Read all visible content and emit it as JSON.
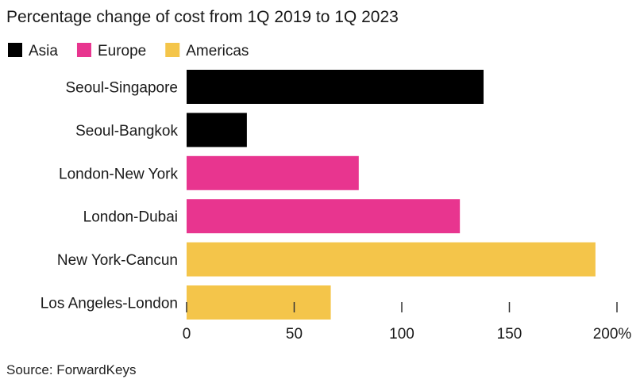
{
  "chart_data": {
    "type": "bar",
    "orientation": "horizontal",
    "title": "Percentage change of cost from 1Q 2019 to 1Q 2023",
    "categories": [
      "Seoul-Singapore",
      "Seoul-Bangkok",
      "London-New York",
      "London-Dubai",
      "New York-Cancun",
      "Los Angeles-London"
    ],
    "values": [
      138,
      28,
      80,
      127,
      190,
      67
    ],
    "groups": [
      "Asia",
      "Asia",
      "Europe",
      "Europe",
      "Americas",
      "Americas"
    ],
    "legend": [
      {
        "name": "Asia",
        "color": "#000000"
      },
      {
        "name": "Europe",
        "color": "#e8358f"
      },
      {
        "name": "Americas",
        "color": "#f4c54a"
      }
    ],
    "legend_position": "top-left",
    "xlim": [
      0,
      200
    ],
    "xticks": [
      0,
      50,
      100,
      150,
      200
    ],
    "xtick_labels": [
      "0",
      "50",
      "100",
      "150",
      "200%"
    ],
    "grid": false,
    "xlabel": "",
    "ylabel": ""
  },
  "source": "Source: ForwardKeys"
}
